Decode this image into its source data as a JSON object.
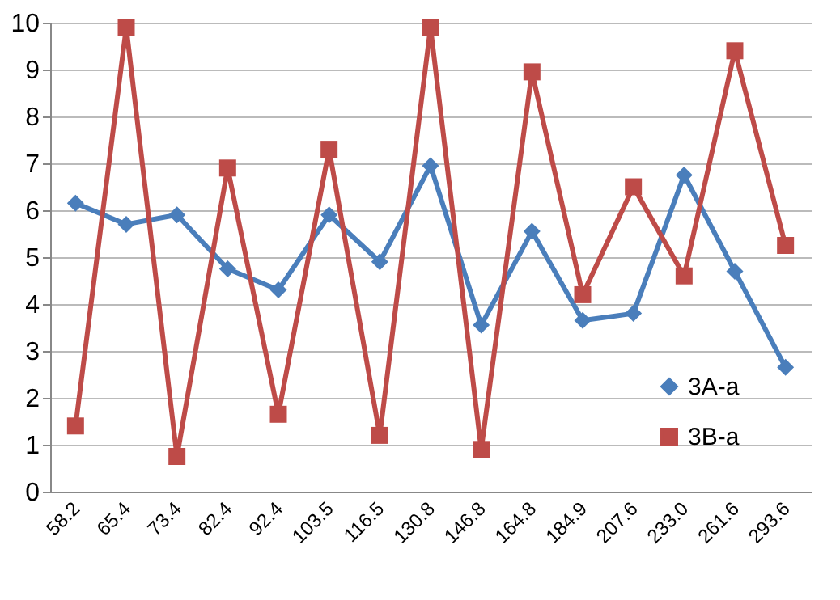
{
  "chart_data": {
    "type": "line",
    "categories": [
      "58.2",
      "65.4",
      "73.4",
      "82.4",
      "92.4",
      "103.5",
      "116.5",
      "130.8",
      "146.8",
      "164.8",
      "184.9",
      "207.6",
      "233.0",
      "261.6",
      "293.6"
    ],
    "series": [
      {
        "name": "3A-a",
        "color": "#4a7ebb",
        "marker": "diamond",
        "values": [
          6.15,
          5.7,
          5.9,
          4.75,
          4.3,
          5.9,
          4.9,
          6.95,
          3.55,
          5.55,
          3.65,
          3.8,
          6.75,
          4.7,
          2.65
        ]
      },
      {
        "name": "3B-a",
        "color": "#be4b48",
        "marker": "square",
        "values": [
          1.4,
          9.9,
          0.75,
          6.9,
          1.65,
          7.3,
          1.2,
          9.9,
          0.9,
          8.95,
          4.2,
          6.5,
          4.6,
          9.4,
          5.25
        ]
      }
    ],
    "ylim": [
      0,
      10
    ],
    "yticks": [
      0,
      1,
      2,
      3,
      4,
      5,
      6,
      7,
      8,
      9,
      10
    ],
    "grid": "y",
    "legend": "right"
  }
}
